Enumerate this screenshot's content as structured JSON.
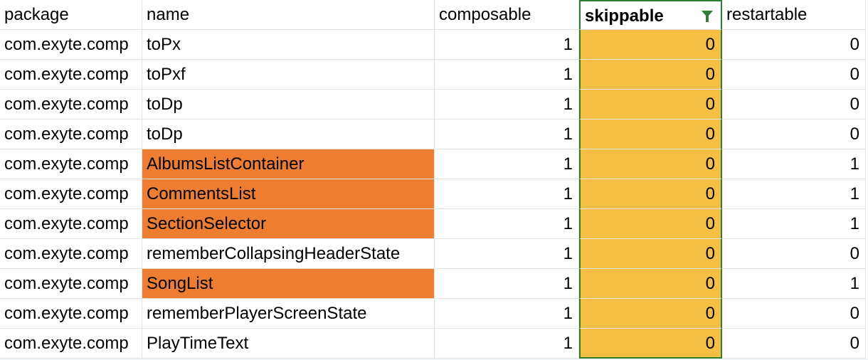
{
  "colors": {
    "highlight_name": "#ed7d31",
    "highlight_skippable": "#f4bf42",
    "filter_border": "#2e7d32",
    "grid": "#e2e3e3"
  },
  "headers": {
    "package": "package",
    "name": "name",
    "composable": "composable",
    "skippable": "skippable",
    "restartable": "restartable"
  },
  "filter_icon": "filter-funnel-icon",
  "rows": [
    {
      "package": "com.exyte.comp",
      "name": "toPx",
      "composable": "1",
      "skippable": "0",
      "restartable": "0",
      "name_highlighted": false
    },
    {
      "package": "com.exyte.comp",
      "name": "toPxf",
      "composable": "1",
      "skippable": "0",
      "restartable": "0",
      "name_highlighted": false
    },
    {
      "package": "com.exyte.comp",
      "name": "toDp",
      "composable": "1",
      "skippable": "0",
      "restartable": "0",
      "name_highlighted": false
    },
    {
      "package": "com.exyte.comp",
      "name": "toDp",
      "composable": "1",
      "skippable": "0",
      "restartable": "0",
      "name_highlighted": false
    },
    {
      "package": "com.exyte.comp",
      "name": "AlbumsListContainer",
      "composable": "1",
      "skippable": "0",
      "restartable": "1",
      "name_highlighted": true
    },
    {
      "package": "com.exyte.comp",
      "name": "CommentsList",
      "composable": "1",
      "skippable": "0",
      "restartable": "1",
      "name_highlighted": true
    },
    {
      "package": "com.exyte.comp",
      "name": "SectionSelector",
      "composable": "1",
      "skippable": "0",
      "restartable": "1",
      "name_highlighted": true
    },
    {
      "package": "com.exyte.comp",
      "name": "rememberCollapsingHeaderState",
      "composable": "1",
      "skippable": "0",
      "restartable": "0",
      "name_highlighted": false
    },
    {
      "package": "com.exyte.comp",
      "name": "SongList",
      "composable": "1",
      "skippable": "0",
      "restartable": "1",
      "name_highlighted": true
    },
    {
      "package": "com.exyte.comp",
      "name": "rememberPlayerScreenState",
      "composable": "1",
      "skippable": "0",
      "restartable": "0",
      "name_highlighted": false
    },
    {
      "package": "com.exyte.comp",
      "name": "PlayTimeText",
      "composable": "1",
      "skippable": "0",
      "restartable": "0",
      "name_highlighted": false
    }
  ]
}
